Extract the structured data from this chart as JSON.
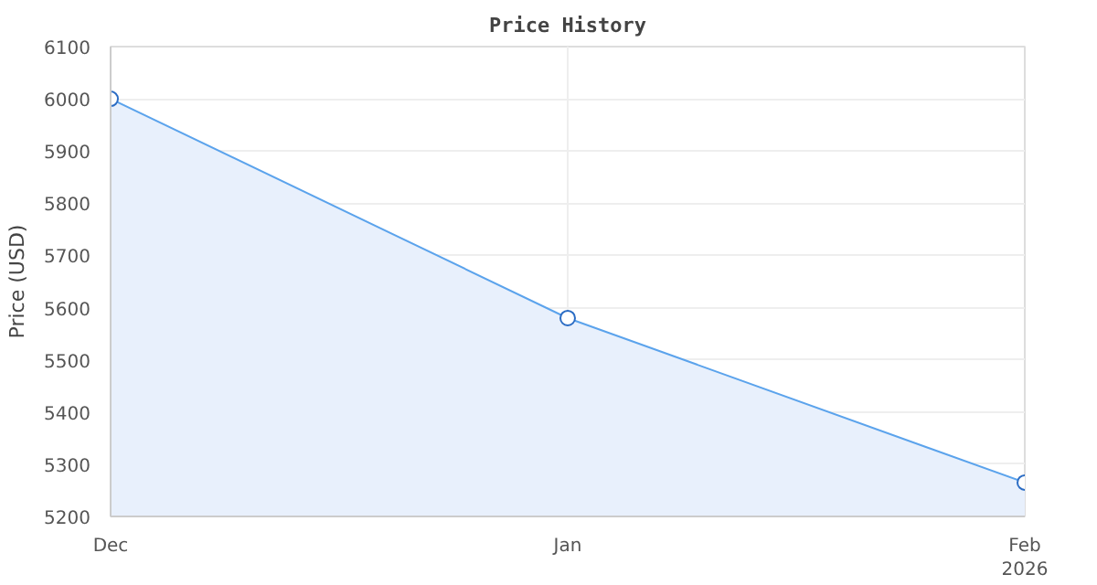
{
  "chart_data": {
    "type": "area",
    "title": "Price History",
    "x": [
      "2025-12-01",
      "2026-01-01",
      "2026-02-01"
    ],
    "series": [
      {
        "color": "#5ba3ec",
        "values": [
          6000,
          5580,
          5265
        ]
      }
    ],
    "xlim": [
      "2025-12-01",
      "2026-02-01"
    ],
    "xticks": [
      {
        "value": "2025-12-01",
        "label": "Dec"
      },
      {
        "value": "2026-01-01",
        "label": "Jan"
      },
      {
        "value": "2026-02-01",
        "label": "Feb\n2026"
      }
    ],
    "ylabel": "Price (USD)",
    "ylim": [
      5200,
      6100
    ],
    "yticks": [
      5200,
      5300,
      5400,
      5500,
      5600,
      5700,
      5800,
      5900,
      6000,
      6100
    ],
    "grid": true,
    "marker": "circle",
    "line_style": "solid"
  }
}
